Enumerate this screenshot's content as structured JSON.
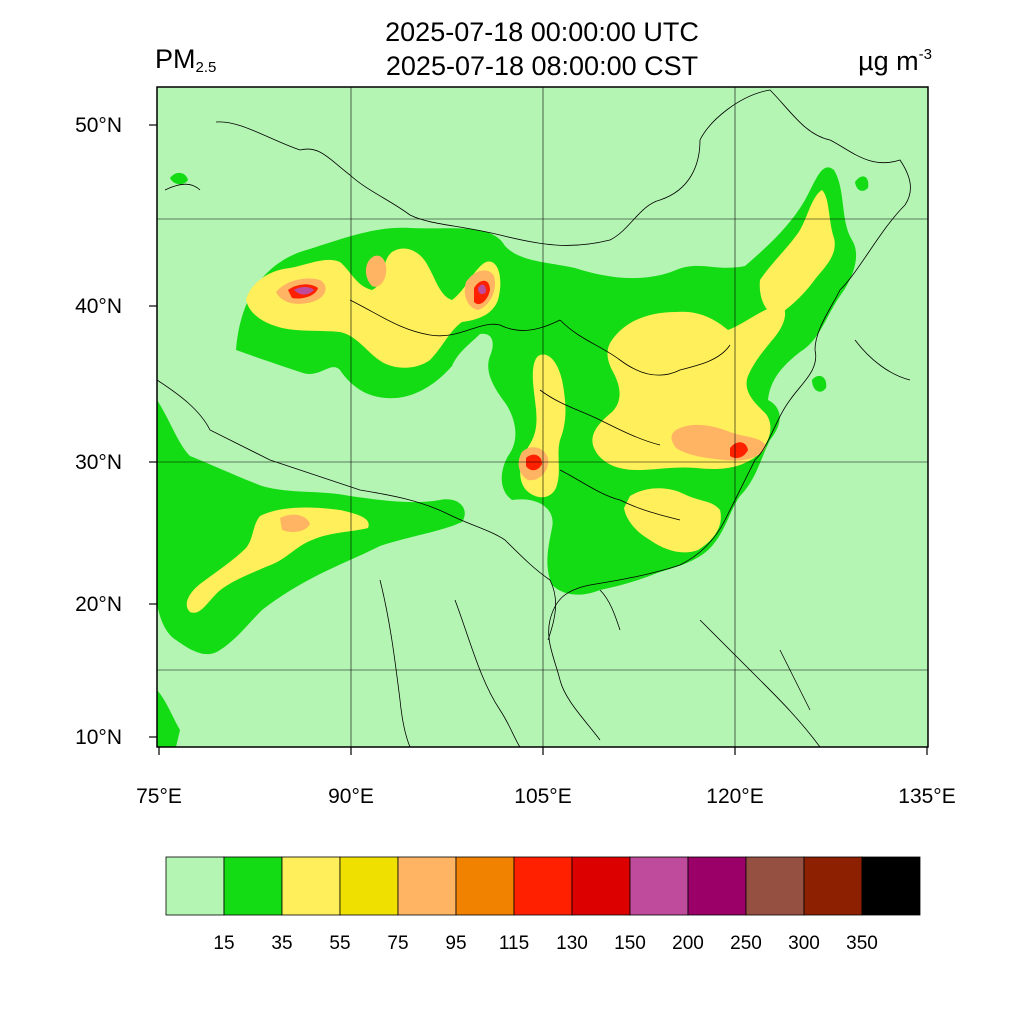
{
  "title": {
    "line1": "2025-07-18 00:00:00 UTC",
    "line2": "2025-07-18 08:00:00 CST"
  },
  "variable": {
    "name": "PM",
    "subscript": "2.5"
  },
  "units": {
    "base": "µg m",
    "exponent": "-3"
  },
  "map": {
    "lon_range": [
      75,
      135
    ],
    "lat_range": [
      9,
      52
    ],
    "lon_ticks": [
      "75°E",
      "90°E",
      "105°E",
      "120°E",
      "135°E"
    ],
    "lat_ticks": [
      "10°N",
      "20°N",
      "30°N",
      "40°N",
      "50°N"
    ],
    "grid": true,
    "background_category": "<15"
  },
  "colorbar": {
    "colors": [
      "#b4f5b4",
      "#14dc14",
      "#ffef5a",
      "#f0e000",
      "#ffb464",
      "#f08200",
      "#ff2000",
      "#dc0000",
      "#be4b9b",
      "#9b0069",
      "#965041",
      "#8c2000",
      "#000000"
    ],
    "labels": [
      "15",
      "35",
      "55",
      "75",
      "95",
      "115",
      "130",
      "150",
      "200",
      "250",
      "300",
      "350"
    ]
  }
}
